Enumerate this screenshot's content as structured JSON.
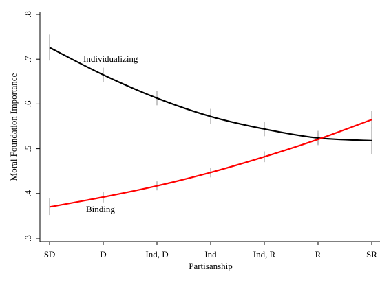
{
  "chart_data": {
    "type": "line",
    "xlabel": "Partisanship",
    "ylabel": "Moral Foundation Importance",
    "categories": [
      "SD",
      "D",
      "Ind, D",
      "Ind",
      "Ind, R",
      "R",
      "SR"
    ],
    "ylim": [
      0.3,
      0.8
    ],
    "yticks": [
      ".3",
      ".4",
      ".5",
      ".6",
      ".7",
      ".8"
    ],
    "ytick_values": [
      0.3,
      0.4,
      0.5,
      0.6,
      0.7,
      0.8
    ],
    "grid": false,
    "series": [
      {
        "name": "Individualizing",
        "color": "#000000",
        "values": [
          0.726,
          0.665,
          0.613,
          0.572,
          0.544,
          0.524,
          0.518
        ],
        "ci_low": [
          0.697,
          0.649,
          0.597,
          0.555,
          0.528,
          0.51,
          0.488
        ],
        "ci_high": [
          0.755,
          0.681,
          0.629,
          0.589,
          0.56,
          0.54,
          0.548
        ]
      },
      {
        "name": "Binding",
        "color": "#ff0000",
        "values": [
          0.37,
          0.392,
          0.417,
          0.447,
          0.482,
          0.521,
          0.565
        ],
        "ci_low": [
          0.352,
          0.38,
          0.407,
          0.436,
          0.47,
          0.508,
          0.545
        ],
        "ci_high": [
          0.389,
          0.404,
          0.427,
          0.458,
          0.494,
          0.535,
          0.585
        ]
      }
    ]
  }
}
